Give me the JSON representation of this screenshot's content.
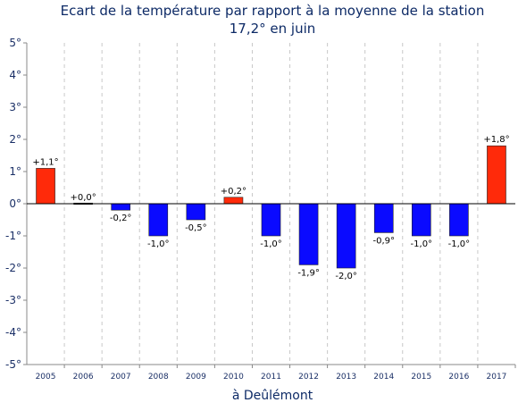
{
  "chart_data": {
    "type": "bar",
    "title_line1": "Ecart de la température par rapport à la moyenne de la station",
    "title_line2": "17,2° en juin",
    "xlabel": "à Deûlémont",
    "ylabel": "",
    "ylim": [
      -5,
      5
    ],
    "yticks": [
      "5°",
      "4°",
      "3°",
      "2°",
      "1°",
      "0°",
      "-1°",
      "-2°",
      "-3°",
      "-4°",
      "-5°"
    ],
    "ytick_values": [
      5,
      4,
      3,
      2,
      1,
      0,
      -1,
      -2,
      -3,
      -4,
      -5
    ],
    "categories": [
      "2005",
      "2006",
      "2007",
      "2008",
      "2009",
      "2010",
      "2011",
      "2012",
      "2013",
      "2014",
      "2015",
      "2016",
      "2017"
    ],
    "values": [
      1.1,
      0.0,
      -0.2,
      -1.0,
      -0.5,
      0.2,
      -1.0,
      -1.9,
      -2.0,
      -0.9,
      -1.0,
      -1.0,
      1.8
    ],
    "labels": [
      "+1,1°",
      "+0,0°",
      "-0,2°",
      "-1,0°",
      "-0,5°",
      "+0,2°",
      "-1,0°",
      "-1,9°",
      "-2,0°",
      "-0,9°",
      "-1,0°",
      "-1,0°",
      "+1,8°"
    ],
    "grid": true,
    "colors": {
      "positive": "#ff2a0a",
      "negative": "#0a0aff"
    }
  }
}
